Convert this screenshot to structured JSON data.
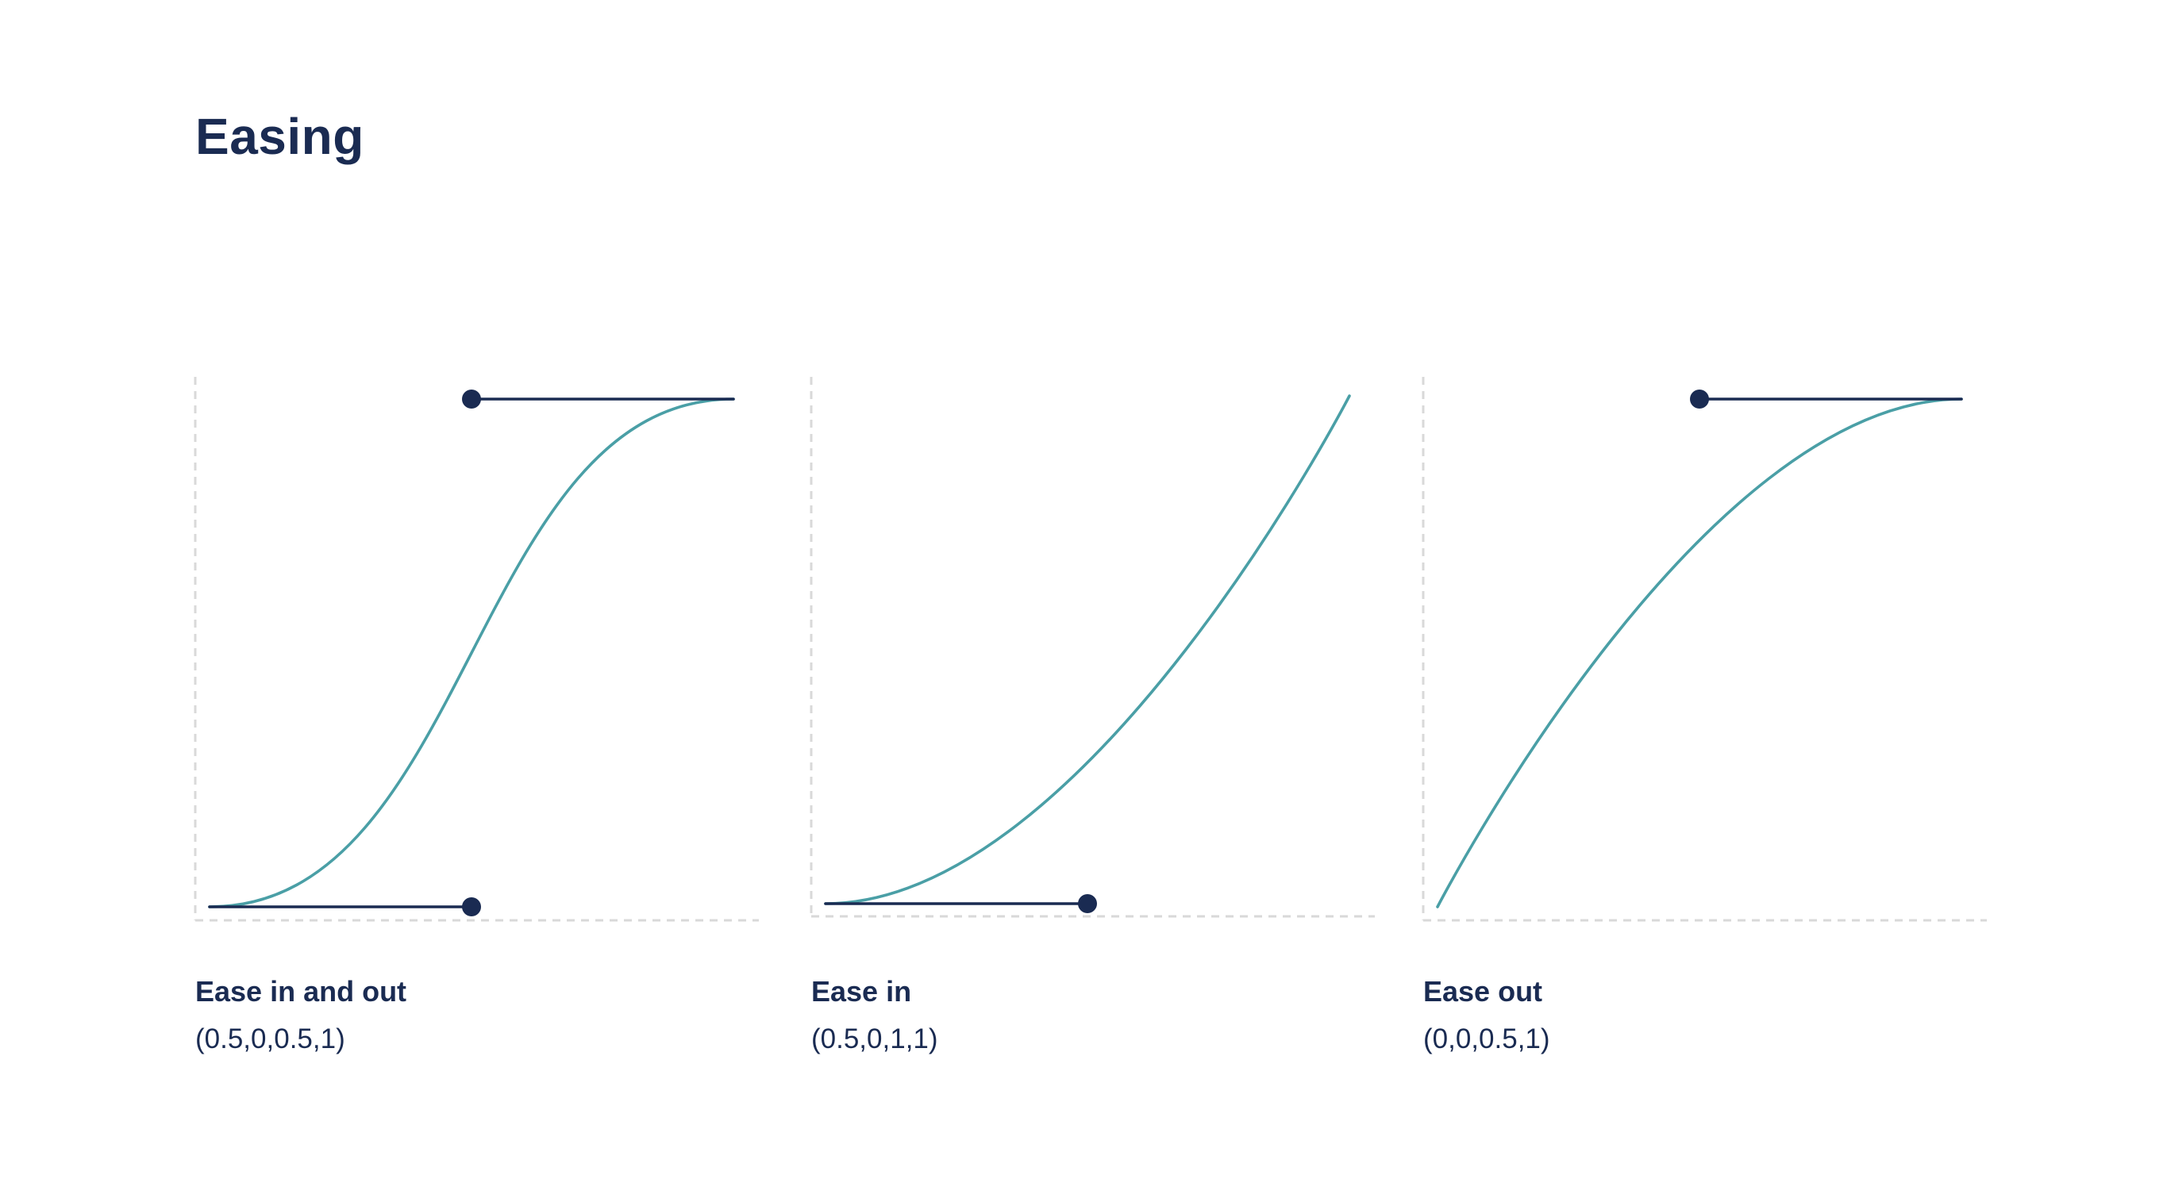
{
  "page": {
    "title": "Easing"
  },
  "colors": {
    "curve": "#4a9fa6",
    "handle": "#1a2b52",
    "axis": "#d9d9d9",
    "text": "#1a2b52"
  },
  "curves": [
    {
      "label": "Ease in and out",
      "params": "(0.5,0,0.5,1)",
      "bezier": [
        0.5,
        0,
        0.5,
        1
      ]
    },
    {
      "label": "Ease in",
      "params": "(0.5,0,1,1)",
      "bezier": [
        0.5,
        0,
        1,
        1
      ]
    },
    {
      "label": "Ease out",
      "params": "(0,0,0.5,1)",
      "bezier": [
        0,
        0,
        0.5,
        1
      ]
    }
  ]
}
